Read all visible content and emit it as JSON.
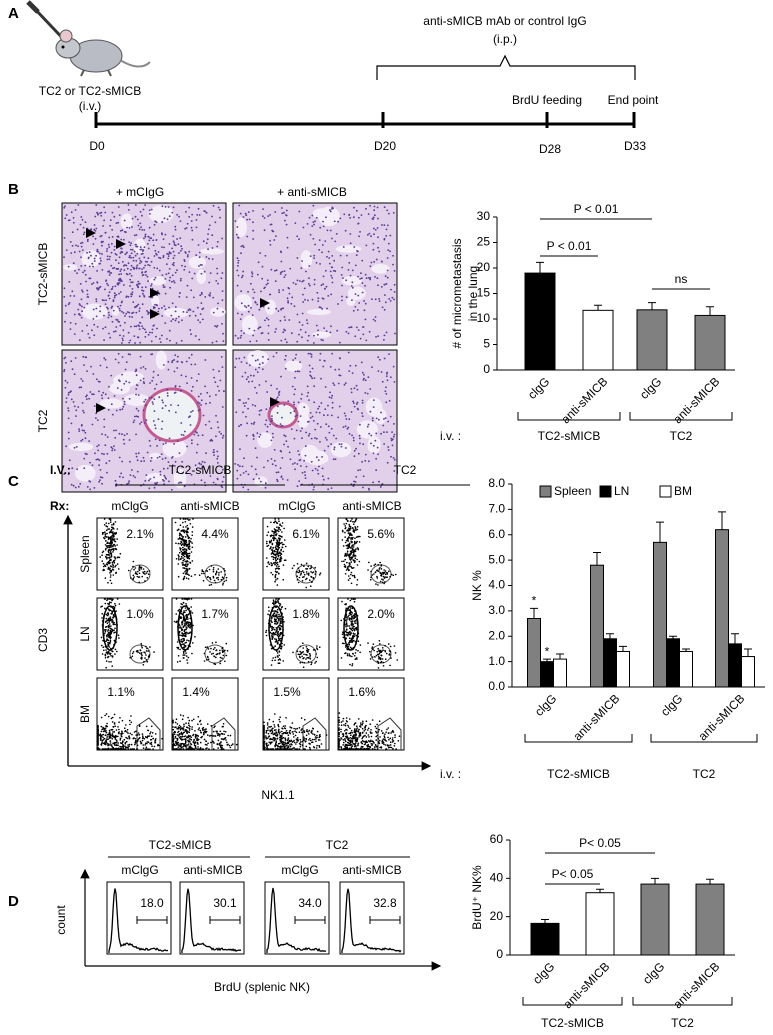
{
  "panel_a": {
    "label": "A",
    "treatment": "anti-sMICB mAb or control IgG",
    "treatment_route": "(i.p.)",
    "injection": "TC2 or TC2-sMICB",
    "injection_route": "(i.v.)",
    "events": [
      "BrdU feeding",
      "End point"
    ],
    "days": [
      "D0",
      "D20",
      "D28",
      "D33"
    ]
  },
  "panel_b": {
    "label": "B",
    "columns": [
      "+ mCIgG",
      "+ anti-sMICB"
    ],
    "rows": [
      "TC2-sMICB",
      "TC2"
    ]
  },
  "panel_c": {
    "label": "C",
    "iv_label": "I.V.:",
    "rx_label": "Rx:",
    "groups": [
      "TC2-sMICB",
      "TC2"
    ],
    "treatments": [
      "mClgG",
      "anti-sMICB",
      "mClgG",
      "anti-sMICB"
    ],
    "rows": [
      "Spleen",
      "LN",
      "BM"
    ],
    "percentages": [
      [
        "2.1%",
        "4.4%",
        "6.1%",
        "5.6%"
      ],
      [
        "1.0%",
        "1.7%",
        "1.8%",
        "2.0%"
      ],
      [
        "1.1%",
        "1.4%",
        "1.5%",
        "1.6%"
      ]
    ],
    "y_axis": "CD3",
    "x_axis": "NK1.1"
  },
  "panel_d": {
    "label": "D",
    "groups": [
      "TC2-sMICB",
      "TC2"
    ],
    "treatments": [
      "mClgG",
      "anti-sMICB",
      "mClgG",
      "anti-sMICB"
    ],
    "gates": [
      "18.0",
      "30.1",
      "34.0",
      "32.8"
    ],
    "y_axis": "count",
    "x_axis": "BrdU (splenic NK)"
  },
  "chart_data": [
    {
      "type": "bar",
      "ylabel": [
        "# of micrometastasis",
        "in the lung"
      ],
      "categories": [
        "clgG",
        "anti-sMICB",
        "clgG",
        "anti-sMICB"
      ],
      "values": [
        19,
        11.7,
        11.8,
        10.7
      ],
      "errors": [
        2.1,
        1,
        1.4,
        1.7
      ],
      "colors": [
        "#000000",
        "#ffffff",
        "#808080",
        "#808080"
      ],
      "ylim": [
        0,
        30
      ],
      "yticks": [
        0,
        5,
        10,
        15,
        20,
        25,
        30
      ],
      "annotations": [
        "P < 0.01",
        "P < 0.01",
        "ns"
      ],
      "group_label": "i.v. :",
      "groups": [
        "TC2-sMICB",
        "TC2"
      ]
    },
    {
      "type": "bar",
      "ylabel": [
        "NK %"
      ],
      "categories": [
        "clgG",
        "anti-sMICB",
        "clgG",
        "anti-sMICB"
      ],
      "series": [
        {
          "name": "Spleen",
          "color": "#808080",
          "values": [
            2.7,
            4.8,
            5.7,
            6.2
          ],
          "errors": [
            0.4,
            0.5,
            0.8,
            0.7
          ]
        },
        {
          "name": "LN",
          "color": "#000000",
          "values": [
            1.0,
            1.9,
            1.9,
            1.7
          ],
          "errors": [
            0.1,
            0.2,
            0.1,
            0.4
          ]
        },
        {
          "name": "BM",
          "color": "#ffffff",
          "values": [
            1.1,
            1.4,
            1.4,
            1.2
          ],
          "errors": [
            0.2,
            0.2,
            0.1,
            0.3
          ]
        }
      ],
      "ylim": [
        0,
        8
      ],
      "yticks": [
        {
          "value": 0,
          "label": "0.0"
        },
        {
          "value": 1,
          "label": "1.0"
        },
        {
          "value": 2,
          "label": "2.0"
        },
        {
          "value": 3,
          "label": "3.0"
        },
        {
          "value": 4,
          "label": "4.0"
        },
        {
          "value": 5,
          "label": "5.0"
        },
        {
          "value": 6,
          "label": "6.0"
        },
        {
          "value": 7,
          "label": "7.0"
        },
        {
          "value": 8,
          "label": "8.0"
        }
      ],
      "legend": "top",
      "annotations": [
        "*",
        "*"
      ],
      "group_label": "i.v. :",
      "groups": [
        "TC2-sMICB",
        "TC2"
      ]
    },
    {
      "type": "bar",
      "ylabel": [
        "BrdU⁺ NK%"
      ],
      "categories": [
        "clgG",
        "anti-sMICB",
        "clgG",
        "anti-sMICB"
      ],
      "values": [
        16.5,
        32.5,
        37,
        37
      ],
      "errors": [
        2,
        1.8,
        3,
        2.5
      ],
      "colors": [
        "#000000",
        "#ffffff",
        "#808080",
        "#808080"
      ],
      "ylim": [
        0,
        60
      ],
      "yticks": [
        0,
        20,
        40,
        60
      ],
      "annotations": [
        "P< 0.05",
        "P< 0.05"
      ],
      "groups": [
        "TC2-sMICB",
        "TC2"
      ]
    }
  ]
}
